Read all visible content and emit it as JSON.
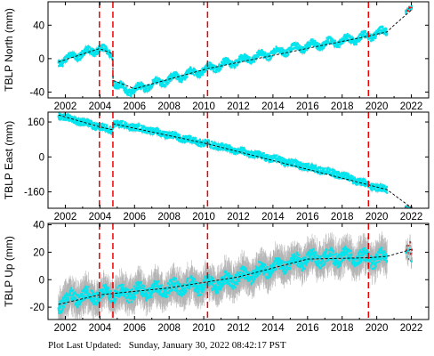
{
  "footer": {
    "label": "Plot Last Updated:",
    "value": "Sunday, January 30, 2022 08:42:17 PST"
  },
  "chart_data": [
    {
      "type": "scatter",
      "ylabel": "TBLP North (mm)",
      "xlim": [
        2001.0,
        2023.0
      ],
      "ylim": [
        -47,
        68
      ],
      "yticks": [
        -40,
        0,
        40
      ],
      "xticks": [
        2002,
        2004,
        2006,
        2008,
        2010,
        2012,
        2014,
        2016,
        2018,
        2020,
        2022
      ],
      "offsets": [
        2003.97,
        2004.75,
        2010.22,
        2019.52
      ],
      "series": [
        {
          "color": "#00e5ee",
          "x": [
            2001.6,
            2002.0,
            2002.5,
            2003.0,
            2003.5,
            2003.97,
            2004.4,
            2004.74,
            2004.76,
            2005.0,
            2005.5,
            2006.0,
            2006.5,
            2007.0,
            2008.0,
            2009.0,
            2010.0,
            2010.22,
            2011.0,
            2012.0,
            2013.0,
            2014.0,
            2015.0,
            2016.0,
            2017.0,
            2018.0,
            2019.0,
            2019.52,
            2020.0,
            2020.6
          ],
          "y": [
            -4,
            -1,
            3,
            6,
            9,
            12,
            8,
            6,
            -26,
            -32,
            -38,
            -37,
            -34,
            -31,
            -25,
            -19,
            -14,
            -12,
            -8,
            -3,
            2,
            7,
            11,
            15,
            18,
            21,
            25,
            27,
            30,
            33
          ]
        },
        {
          "color": "#ff0000",
          "x": [
            2021.7,
            2021.8,
            2021.9,
            2022.0
          ],
          "y": [
            56,
            58,
            60,
            61
          ]
        }
      ],
      "model_line": {
        "x": [
          2001.6,
          2003.97,
          2004.74,
          2004.76,
          2006.0,
          2010.22,
          2019.52,
          2020.6,
          2021.0,
          2022.0
        ],
        "y": [
          -4,
          12,
          6,
          -26,
          -36,
          -12,
          27,
          32,
          40,
          58
        ]
      }
    },
    {
      "type": "scatter",
      "ylabel": "TBLP East (mm)",
      "xlim": [
        2001.0,
        2023.0
      ],
      "ylim": [
        -235,
        205
      ],
      "yticks": [
        -160,
        0,
        160
      ],
      "xticks": [
        2002,
        2004,
        2006,
        2008,
        2010,
        2012,
        2014,
        2016,
        2018,
        2020,
        2022
      ],
      "offsets": [
        2003.97,
        2004.75,
        2010.22,
        2019.52
      ],
      "series": [
        {
          "color": "#00e5ee",
          "x": [
            2001.6,
            2002.0,
            2003.0,
            2003.97,
            2004.4,
            2004.74,
            2004.76,
            2005.0,
            2006.0,
            2008.0,
            2010.0,
            2010.22,
            2012.0,
            2014.0,
            2016.0,
            2018.0,
            2019.52,
            2020.0,
            2020.6
          ],
          "y": [
            192,
            182,
            160,
            138,
            128,
            124,
            152,
            150,
            136,
            100,
            64,
            60,
            28,
            -8,
            -46,
            -84,
            -128,
            -140,
            -150
          ]
        },
        {
          "color": "#ff0000",
          "x": [
            2021.7,
            2021.8,
            2021.9,
            2022.0
          ],
          "y": [
            -227,
            -229,
            -231,
            -232
          ]
        }
      ],
      "model_line": {
        "x": [
          2001.6,
          2003.97,
          2004.74,
          2004.76,
          2010.22,
          2019.52,
          2020.6,
          2022.0
        ],
        "y": [
          192,
          138,
          124,
          152,
          60,
          -128,
          -150,
          -232
        ]
      }
    },
    {
      "type": "scatter",
      "ylabel": "TBLP Up (mm)",
      "xlim": [
        2001.0,
        2023.0
      ],
      "ylim": [
        -29,
        41
      ],
      "yticks": [
        -20,
        0,
        20,
        40
      ],
      "xticks": [
        2002,
        2004,
        2006,
        2008,
        2010,
        2012,
        2014,
        2016,
        2018,
        2020,
        2022
      ],
      "offsets": [
        2003.97,
        2004.75,
        2010.22,
        2019.52
      ],
      "series": [
        {
          "color": "#00e5ee",
          "x": [
            2001.6,
            2002.0,
            2003.0,
            2004.0,
            2005.0,
            2006.0,
            2007.0,
            2008.0,
            2009.0,
            2010.0,
            2011.0,
            2012.0,
            2013.0,
            2014.0,
            2015.0,
            2016.0,
            2017.0,
            2018.0,
            2019.0,
            2020.0,
            2020.6
          ],
          "y": [
            -18,
            -14,
            -12,
            -11,
            -10,
            -9,
            -8,
            -6,
            -5,
            -4,
            -2,
            2,
            5,
            9,
            12,
            15,
            16,
            17,
            16,
            15,
            17
          ]
        },
        {
          "color": "#ff0000",
          "x": [
            2021.7,
            2021.8,
            2021.9,
            2022.0
          ],
          "y": [
            22,
            20,
            24,
            18
          ]
        }
      ],
      "model_line": {
        "x": [
          2001.6,
          2004.0,
          2008.0,
          2012.0,
          2016.0,
          2019.52,
          2020.6,
          2022.0
        ],
        "y": [
          -18,
          -11,
          -6,
          2,
          15,
          16,
          17,
          22
        ]
      }
    }
  ],
  "colors": {
    "data": "#00e5ee",
    "errorbar": "#b4b4b4",
    "recent": "#ff0000",
    "offset_line": "#ee0000",
    "model": "#000000"
  }
}
